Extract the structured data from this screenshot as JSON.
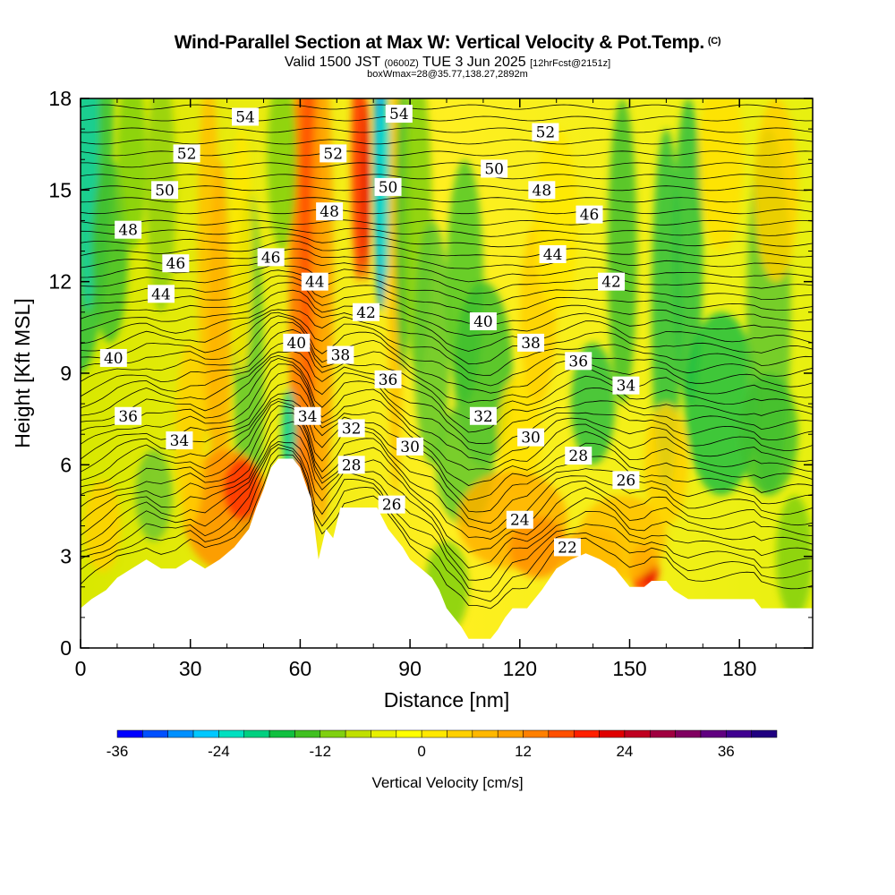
{
  "title": {
    "main": "Wind-Parallel Section at Max W: Vertical Velocity & Pot.Temp.",
    "main_suffix": "(C)",
    "valid_prefix": "Valid 1500 JST",
    "valid_utc": "(0600Z)",
    "valid_date": "TUE 3 Jun 2025",
    "forecast": "[12hrFcst@2151z]",
    "box": "boxWmax=28@35.77,138.27,2892m"
  },
  "chart_data": {
    "type": "heatmap",
    "xlabel": "Distance [nm]",
    "ylabel": "Height [Kft MSL]",
    "xlim": [
      0,
      200
    ],
    "ylim": [
      0,
      18
    ],
    "xticks": [
      0,
      30,
      60,
      90,
      120,
      150,
      180
    ],
    "yticks": [
      0,
      3,
      6,
      9,
      12,
      15,
      18
    ],
    "terrain_kft": [
      [
        0,
        1.3
      ],
      [
        3,
        1.6
      ],
      [
        7,
        1.9
      ],
      [
        10,
        2.3
      ],
      [
        14,
        2.6
      ],
      [
        18,
        2.9
      ],
      [
        22,
        2.6
      ],
      [
        26,
        2.6
      ],
      [
        30,
        2.9
      ],
      [
        34,
        2.6
      ],
      [
        38,
        2.9
      ],
      [
        42,
        3.3
      ],
      [
        44,
        3.6
      ],
      [
        46,
        3.9
      ],
      [
        48,
        4.6
      ],
      [
        50,
        5.2
      ],
      [
        52,
        5.9
      ],
      [
        54,
        6.2
      ],
      [
        58,
        6.2
      ],
      [
        60,
        5.9
      ],
      [
        62,
        5.2
      ],
      [
        63,
        4.9
      ],
      [
        64,
        3.9
      ],
      [
        65,
        2.9
      ],
      [
        67,
        3.9
      ],
      [
        69,
        3.6
      ],
      [
        71,
        4.6
      ],
      [
        75,
        4.6
      ],
      [
        79,
        4.6
      ],
      [
        81,
        4.6
      ],
      [
        84,
        3.9
      ],
      [
        86,
        3.6
      ],
      [
        88,
        3.3
      ],
      [
        90,
        2.9
      ],
      [
        93,
        2.6
      ],
      [
        96,
        2.3
      ],
      [
        98,
        1.9
      ],
      [
        100,
        1.3
      ],
      [
        102,
        1.0
      ],
      [
        104,
        0.7
      ],
      [
        106,
        0.3
      ],
      [
        112,
        0.3
      ],
      [
        114,
        0.6
      ],
      [
        116,
        1.0
      ],
      [
        118,
        1.3
      ],
      [
        122,
        1.3
      ],
      [
        126,
        1.9
      ],
      [
        130,
        2.6
      ],
      [
        134,
        2.9
      ],
      [
        138,
        3.1
      ],
      [
        142,
        2.9
      ],
      [
        146,
        2.6
      ],
      [
        148,
        2.3
      ],
      [
        150,
        2.0
      ],
      [
        154,
        2.0
      ],
      [
        156,
        2.2
      ],
      [
        160,
        2.2
      ],
      [
        162,
        1.9
      ],
      [
        166,
        1.6
      ],
      [
        170,
        1.6
      ],
      [
        184,
        1.6
      ],
      [
        186,
        1.3
      ],
      [
        200,
        1.3
      ]
    ],
    "theta_contours": [
      {
        "label": "54",
        "x": 45,
        "y": 17.4
      },
      {
        "label": "54",
        "x": 87,
        "y": 17.5
      },
      {
        "label": "52",
        "x": 29,
        "y": 16.2
      },
      {
        "label": "52",
        "x": 69,
        "y": 16.2
      },
      {
        "label": "52",
        "x": 127,
        "y": 16.9
      },
      {
        "label": "50",
        "x": 23,
        "y": 15.0
      },
      {
        "label": "50",
        "x": 84,
        "y": 15.1
      },
      {
        "label": "50",
        "x": 113,
        "y": 15.7
      },
      {
        "label": "48",
        "x": 13,
        "y": 13.7
      },
      {
        "label": "48",
        "x": 68,
        "y": 14.3
      },
      {
        "label": "48",
        "x": 126,
        "y": 15.0
      },
      {
        "label": "46",
        "x": 26,
        "y": 12.6
      },
      {
        "label": "46",
        "x": 52,
        "y": 12.8
      },
      {
        "label": "46",
        "x": 139,
        "y": 14.2
      },
      {
        "label": "44",
        "x": 22,
        "y": 11.6
      },
      {
        "label": "44",
        "x": 64,
        "y": 12.0
      },
      {
        "label": "44",
        "x": 129,
        "y": 12.9
      },
      {
        "label": "42",
        "x": 78,
        "y": 11.0
      },
      {
        "label": "42",
        "x": 145,
        "y": 12.0
      },
      {
        "label": "40",
        "x": 9,
        "y": 9.5
      },
      {
        "label": "40",
        "x": 59,
        "y": 10.0
      },
      {
        "label": "40",
        "x": 110,
        "y": 10.7
      },
      {
        "label": "38",
        "x": 71,
        "y": 9.6
      },
      {
        "label": "38",
        "x": 123,
        "y": 10.0
      },
      {
        "label": "36",
        "x": 13,
        "y": 7.6
      },
      {
        "label": "36",
        "x": 84,
        "y": 8.8
      },
      {
        "label": "36",
        "x": 136,
        "y": 9.4
      },
      {
        "label": "34",
        "x": 27,
        "y": 6.8
      },
      {
        "label": "34",
        "x": 62,
        "y": 7.6
      },
      {
        "label": "34",
        "x": 149,
        "y": 8.6
      },
      {
        "label": "32",
        "x": 74,
        "y": 7.2
      },
      {
        "label": "32",
        "x": 110,
        "y": 7.6
      },
      {
        "label": "30",
        "x": 90,
        "y": 6.6
      },
      {
        "label": "30",
        "x": 123,
        "y": 6.9
      },
      {
        "label": "28",
        "x": 74,
        "y": 6.0
      },
      {
        "label": "28",
        "x": 136,
        "y": 6.3
      },
      {
        "label": "26",
        "x": 85,
        "y": 4.7
      },
      {
        "label": "26",
        "x": 149,
        "y": 5.5
      },
      {
        "label": "24",
        "x": 120,
        "y": 4.2
      },
      {
        "label": "22",
        "x": 133,
        "y": 3.3
      }
    ],
    "colorbar": {
      "label": "Vertical Velocity [cm/s]",
      "min": -36,
      "max": 42,
      "step": 3,
      "ticks": [
        -36,
        -24,
        -12,
        0,
        12,
        24,
        36
      ],
      "colors": [
        "#0000ff",
        "#0050ff",
        "#0090ff",
        "#00c8ff",
        "#00e0c0",
        "#00d080",
        "#10c040",
        "#40c020",
        "#80d010",
        "#c0e000",
        "#e8f000",
        "#ffff00",
        "#ffe800",
        "#ffd000",
        "#ffb800",
        "#ffa000",
        "#ff8000",
        "#ff5000",
        "#ff2000",
        "#e00000",
        "#c00020",
        "#a00040",
        "#800060",
        "#600080",
        "#400090",
        "#200080"
      ]
    },
    "max_w_cms": 28,
    "max_w_location": "35.77,138.27,2892m"
  }
}
